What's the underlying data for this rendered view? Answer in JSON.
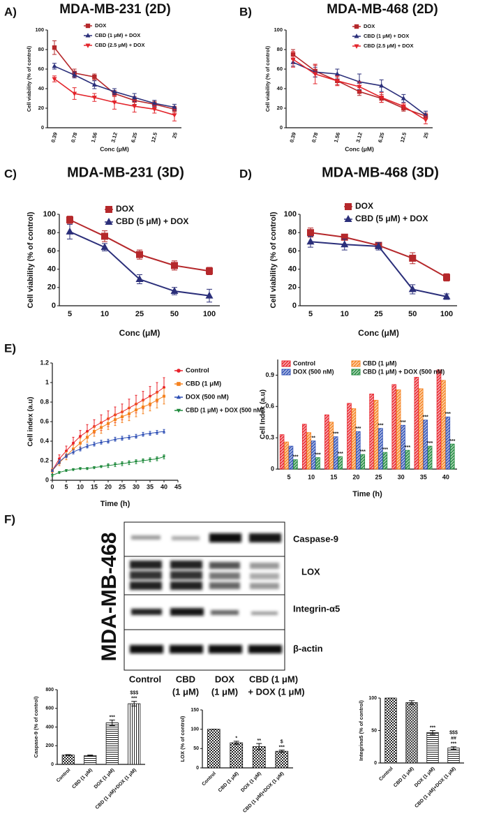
{
  "panel_labels": [
    "A)",
    "B)",
    "C)",
    "D)",
    "E)",
    "F)"
  ],
  "blot": {
    "side_label": "MDA-MB-468",
    "proteins": [
      "Caspase-9",
      "LOX",
      "Integrin-α5",
      "β-actin"
    ],
    "lanes": [
      [
        "Control"
      ],
      [
        "CBD",
        "(1 μM)"
      ],
      [
        "DOX",
        "(1 μM)"
      ],
      [
        "CBD (1 μM)",
        "+ DOX (1 μM)"
      ]
    ]
  },
  "chart_data": [
    {
      "type": "line",
      "title": "MDA-MB-231 (2D)",
      "x_label": "Conc (μM)",
      "y_label": "Cell viability (% of control)",
      "categories": [
        "0.39",
        "0.78",
        "1.56",
        "3.12",
        "6.25",
        "12.5",
        "25"
      ],
      "ylim": [
        0,
        100
      ],
      "yticks": [
        0,
        20,
        40,
        60,
        80,
        100
      ],
      "series": [
        {
          "name": "DOX",
          "color": "#b5282b",
          "marker": "square",
          "values": [
            82,
            56,
            52,
            35,
            28,
            24,
            19
          ],
          "errors": [
            7,
            4,
            3,
            3,
            4,
            3,
            3
          ]
        },
        {
          "name": "CBD (1 μM) + DOX",
          "color": "#2b2f7a",
          "marker": "triangle",
          "values": [
            63,
            54,
            44,
            37,
            31,
            25,
            21
          ],
          "errors": [
            3,
            3,
            4,
            3,
            4,
            3,
            3
          ]
        },
        {
          "name": "CBD (2.5 μM) + DOX",
          "color": "#e3242b",
          "marker": "triangle-down",
          "values": [
            50,
            35,
            31,
            26,
            22,
            19,
            13
          ],
          "errors": [
            3,
            6,
            4,
            7,
            6,
            4,
            6
          ]
        }
      ]
    },
    {
      "type": "line",
      "title": "MDA-MB-468 (2D)",
      "x_label": "Conc (μM)",
      "y_label": "Cell viability (% of control)",
      "categories": [
        "0.39",
        "0.78",
        "1.56",
        "3.12",
        "6.25",
        "12.5",
        "25"
      ],
      "ylim": [
        0,
        100
      ],
      "yticks": [
        0,
        20,
        40,
        60,
        80,
        100
      ],
      "series": [
        {
          "name": "DOX",
          "color": "#b5282b",
          "marker": "square",
          "values": [
            75,
            58,
            48,
            37,
            30,
            20,
            12
          ],
          "errors": [
            5,
            6,
            4,
            4,
            4,
            3,
            3
          ]
        },
        {
          "name": "CBD (1 μM) + DOX",
          "color": "#2b2f7a",
          "marker": "triangle",
          "values": [
            67,
            57,
            55,
            47,
            43,
            30,
            13
          ],
          "errors": [
            4,
            5,
            5,
            8,
            6,
            4,
            4
          ]
        },
        {
          "name": "CBD (2.5 μM) + DOX",
          "color": "#e3242b",
          "marker": "triangle-down",
          "values": [
            70,
            55,
            48,
            42,
            31,
            22,
            8
          ],
          "errors": [
            8,
            10,
            5,
            5,
            5,
            3,
            4
          ]
        }
      ]
    },
    {
      "type": "line",
      "title": "MDA-MB-231 (3D)",
      "x_label": "Conc (μM)",
      "y_label": "Cell viability (% of control)",
      "categories": [
        "5",
        "10",
        "25",
        "50",
        "100"
      ],
      "ylim": [
        0,
        100
      ],
      "yticks": [
        0,
        20,
        40,
        60,
        80,
        100
      ],
      "series": [
        {
          "name": "DOX",
          "color": "#b5282b",
          "marker": "square",
          "values": [
            94,
            76,
            56,
            44,
            38
          ],
          "errors": [
            4,
            6,
            5,
            5,
            4
          ]
        },
        {
          "name": "CBD (5 μM) + DOX",
          "color": "#2b2f7a",
          "marker": "triangle",
          "values": [
            81,
            64,
            29,
            16,
            11
          ],
          "errors": [
            8,
            4,
            5,
            4,
            7
          ]
        }
      ]
    },
    {
      "type": "line",
      "title": "MDA-MB-468 (3D)",
      "x_label": "Conc (μM)",
      "y_label": "Cell viability (% of control)",
      "categories": [
        "5",
        "10",
        "25",
        "50",
        "100"
      ],
      "ylim": [
        0,
        100
      ],
      "yticks": [
        0,
        20,
        40,
        60,
        80,
        100
      ],
      "series": [
        {
          "name": "DOX",
          "color": "#b5282b",
          "marker": "square",
          "values": [
            80,
            75,
            66,
            52,
            31
          ],
          "errors": [
            5,
            3,
            3,
            6,
            4
          ]
        },
        {
          "name": "CBD (5 μM) + DOX",
          "color": "#2b2f7a",
          "marker": "triangle",
          "values": [
            70,
            67,
            65,
            18,
            10
          ],
          "errors": [
            6,
            6,
            4,
            5,
            3
          ]
        }
      ]
    },
    {
      "type": "line",
      "x_label": "Time (h)",
      "y_label": "Cell index (a.u)",
      "x": [
        0,
        2.5,
        5,
        7.5,
        10,
        12.5,
        15,
        17.5,
        20,
        22.5,
        25,
        27.5,
        30,
        32.5,
        35,
        37.5,
        40
      ],
      "xlim": [
        0,
        45
      ],
      "xticks": [
        0,
        5,
        10,
        15,
        20,
        25,
        30,
        35,
        40,
        45
      ],
      "ylim": [
        0,
        1.2
      ],
      "yticks": [
        0,
        0.2,
        0.4,
        0.6,
        0.8,
        1,
        1.2
      ],
      "series": [
        {
          "name": "Control",
          "color": "#e8212a",
          "marker": "circle",
          "values": [
            0.1,
            0.22,
            0.3,
            0.38,
            0.45,
            0.5,
            0.55,
            0.59,
            0.63,
            0.67,
            0.7,
            0.74,
            0.78,
            0.82,
            0.86,
            0.9,
            0.95
          ],
          "errors": [
            0.02,
            0.04,
            0.05,
            0.06,
            0.06,
            0.07,
            0.07,
            0.08,
            0.08,
            0.08,
            0.08,
            0.09,
            0.09,
            0.09,
            0.1,
            0.1,
            0.1
          ]
        },
        {
          "name": "CBD (1 μM)",
          "color": "#f5821f",
          "marker": "square",
          "values": [
            0.1,
            0.18,
            0.25,
            0.32,
            0.38,
            0.44,
            0.5,
            0.54,
            0.58,
            0.62,
            0.65,
            0.68,
            0.72,
            0.75,
            0.78,
            0.82,
            0.86
          ],
          "errors": [
            0.02,
            0.03,
            0.04,
            0.04,
            0.05,
            0.05,
            0.05,
            0.06,
            0.06,
            0.06,
            0.06,
            0.07,
            0.07,
            0.07,
            0.07,
            0.08,
            0.08
          ]
        },
        {
          "name": "DOX (500 nM)",
          "color": "#2e4fb5",
          "marker": "triangle",
          "values": [
            0.1,
            0.19,
            0.25,
            0.29,
            0.32,
            0.35,
            0.37,
            0.39,
            0.4,
            0.42,
            0.43,
            0.44,
            0.45,
            0.47,
            0.48,
            0.49,
            0.5
          ],
          "errors": [
            0.01,
            0.02,
            0.02,
            0.02,
            0.02,
            0.02,
            0.02,
            0.02,
            0.02,
            0.02,
            0.02,
            0.02,
            0.02,
            0.02,
            0.02,
            0.02,
            0.02
          ]
        },
        {
          "name": "CBD (1 μM) + DOX (500 nM)",
          "color": "#1f8a3c",
          "marker": "triangle-down",
          "values": [
            0.05,
            0.08,
            0.1,
            0.11,
            0.12,
            0.12,
            0.13,
            0.14,
            0.15,
            0.16,
            0.17,
            0.18,
            0.19,
            0.2,
            0.21,
            0.22,
            0.24
          ],
          "errors": [
            0.01,
            0.01,
            0.01,
            0.01,
            0.01,
            0.01,
            0.01,
            0.01,
            0.02,
            0.02,
            0.02,
            0.02,
            0.02,
            0.02,
            0.02,
            0.02,
            0.02
          ]
        }
      ]
    },
    {
      "type": "bar",
      "x_label": "Time (h)",
      "y_label": "Cell Index (a.u)",
      "categories": [
        "5",
        "10",
        "15",
        "20",
        "25",
        "30",
        "35",
        "40"
      ],
      "ylim": [
        0,
        1.05
      ],
      "yticks": [
        0,
        0.3,
        0.6,
        0.9
      ],
      "series": [
        {
          "name": "Control",
          "color": "#e8212a",
          "values": [
            0.33,
            0.43,
            0.52,
            0.63,
            0.72,
            0.81,
            0.88,
            0.95
          ]
        },
        {
          "name": "CBD (1 μM)",
          "color": "#f5821f",
          "values": [
            0.26,
            0.35,
            0.45,
            0.58,
            0.66,
            0.76,
            0.77,
            0.85
          ]
        },
        {
          "name": "DOX (500 nM)",
          "color": "#2e4fb5",
          "values": [
            0.22,
            0.27,
            0.31,
            0.36,
            0.39,
            0.42,
            0.47,
            0.5
          ],
          "significance": [
            null,
            "**",
            "***",
            "***",
            "***",
            "***",
            "***",
            "***"
          ]
        },
        {
          "name": "CBD (1 μM) + DOX (500 nM)",
          "color": "#1f8a3c",
          "values": [
            0.09,
            0.11,
            0.12,
            0.14,
            0.16,
            0.18,
            0.22,
            0.24
          ],
          "significance": [
            "***",
            "***",
            "***",
            "***",
            "***",
            "***",
            "***",
            "***"
          ]
        }
      ]
    },
    {
      "type": "bar",
      "y_label": "Caspase-9 (% of control)",
      "categories": [
        "Control",
        "CBD (1 μM)",
        "DOX (1 μM)",
        "CBD (1 μM)+DOX (1 μM)"
      ],
      "ylim": [
        0,
        800
      ],
      "yticks": [
        0,
        200,
        400,
        600,
        800
      ],
      "values": [
        100,
        95,
        445,
        650
      ],
      "errors": [
        5,
        5,
        30,
        25
      ],
      "significance": [
        null,
        null,
        [
          "***"
        ],
        [
          "$$$",
          "***"
        ]
      ],
      "patterns": [
        "checker",
        "hlines",
        "hlines",
        "vlines"
      ]
    },
    {
      "type": "bar",
      "y_label": "LOX (% of control)",
      "categories": [
        "Control",
        "CBD (1 μM)",
        "DOX (1 μM)",
        "CBD (1 μM)+DOX (1 μM)"
      ],
      "ylim": [
        0,
        150
      ],
      "yticks": [
        0,
        50,
        100,
        150
      ],
      "values": [
        100,
        65,
        55,
        43
      ],
      "errors": [
        0,
        4,
        8,
        3
      ],
      "significance": [
        null,
        [
          "*"
        ],
        [
          "**"
        ],
        [
          "$",
          "***"
        ]
      ],
      "patterns": [
        "checker",
        "checker",
        "checker",
        "checker"
      ]
    },
    {
      "type": "bar",
      "y_label": "Integrinα5 (% of control)",
      "categories": [
        "Control",
        "CBD (1 μM)",
        "DOX (1 μM)",
        "CBD (1 μM)+DOX (1 μM)"
      ],
      "ylim": [
        0,
        100
      ],
      "yticks": [
        0,
        50,
        100
      ],
      "values": [
        100,
        93,
        47,
        23
      ],
      "errors": [
        0,
        3,
        3,
        2
      ],
      "significance": [
        null,
        null,
        [
          "***"
        ],
        [
          "$$$",
          "##",
          "***"
        ]
      ],
      "patterns": [
        "checker",
        "hatch",
        "hlines",
        "hlines"
      ]
    }
  ]
}
